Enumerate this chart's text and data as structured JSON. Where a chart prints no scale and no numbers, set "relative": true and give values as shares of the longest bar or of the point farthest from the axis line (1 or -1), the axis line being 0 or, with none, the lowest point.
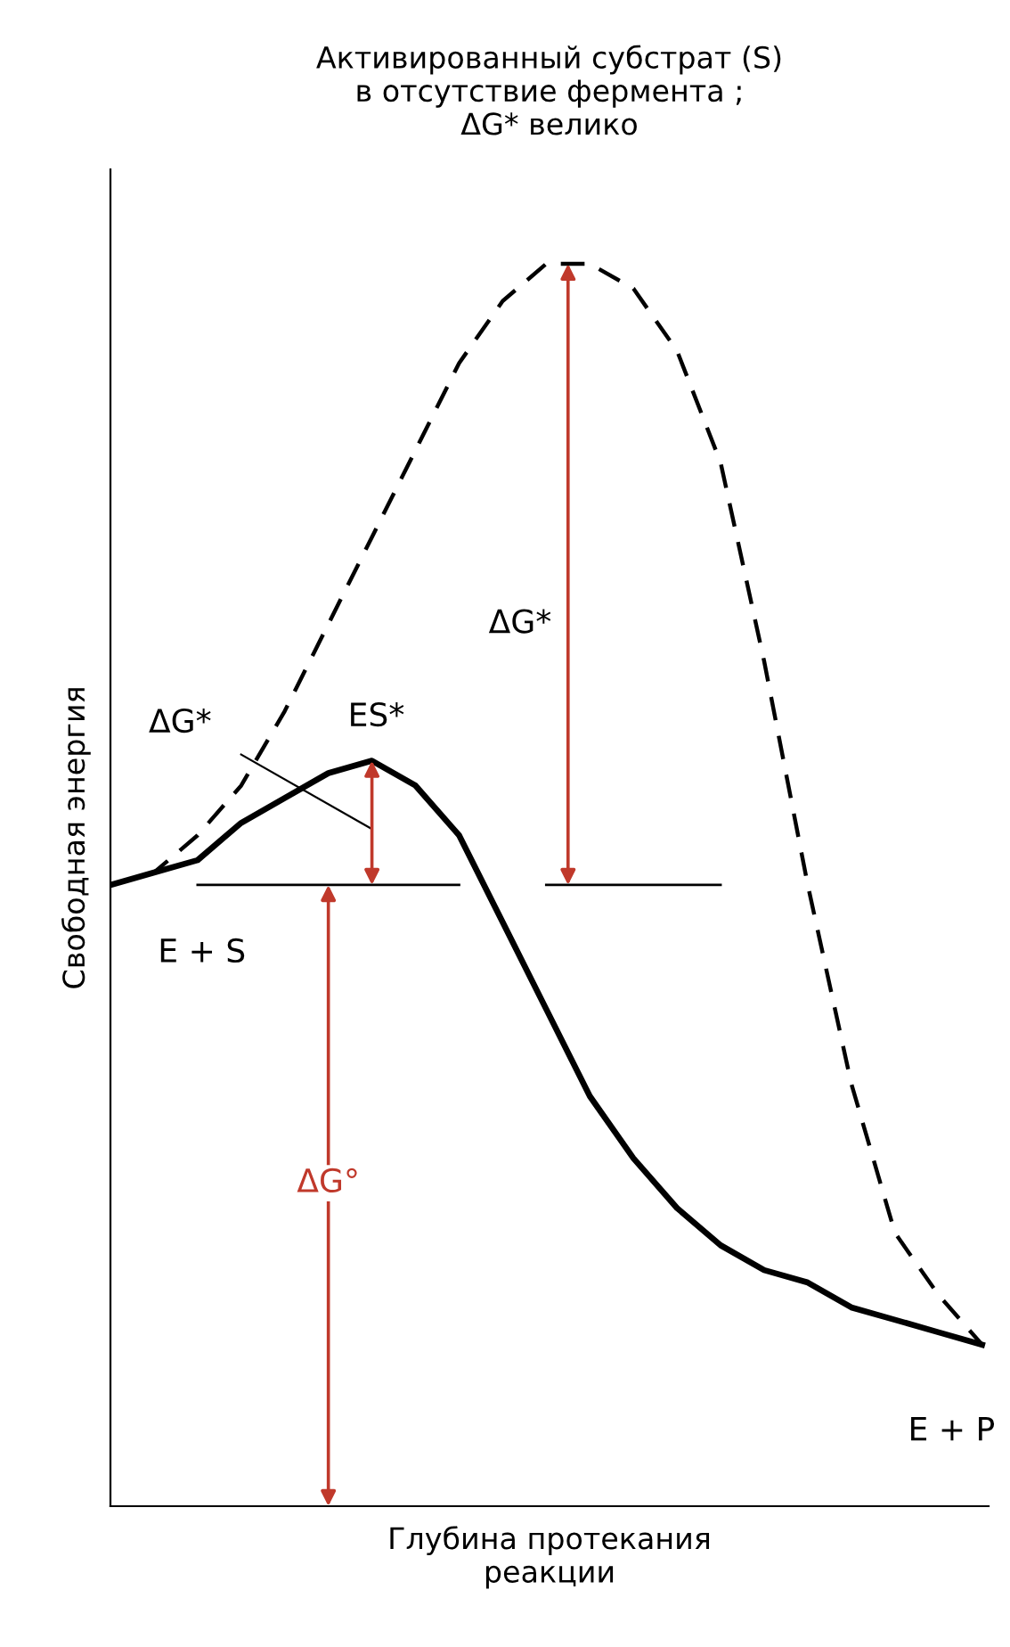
{
  "chart_data": {
    "type": "line",
    "relative": true,
    "title": "Активированный субстрат (S)\nв отсутствие фермента ;\nΔG* велико",
    "xlabel": "Глубина протекания\nреакции",
    "ylabel": "Свободная энергия",
    "categories": [
      null,
      null,
      null,
      null,
      null,
      null,
      null,
      null,
      null,
      null,
      null,
      null,
      null,
      null,
      null,
      null,
      null,
      null,
      null,
      null,
      null
    ],
    "series": [
      {
        "color": "#000000",
        "line_style": "dashed",
        "values": [
          0.5,
          0.51,
          0.54,
          0.58,
          0.64,
          0.71,
          0.78,
          0.85,
          0.92,
          0.97,
          1.0,
          1.0,
          0.98,
          0.93,
          0.84,
          0.68,
          0.5,
          0.34,
          0.22,
          0.17,
          0.13
        ]
      },
      {
        "color": "#000000",
        "line_style": "solid",
        "values": [
          0.5,
          0.51,
          0.52,
          0.55,
          0.57,
          0.59,
          0.6,
          0.58,
          0.54,
          0.47,
          0.4,
          0.33,
          0.28,
          0.24,
          0.21,
          0.19,
          0.18,
          0.16,
          0.15,
          0.14,
          0.13
        ]
      },
      {
        "color": "#000000",
        "line_style": "solid",
        "values": [
          null,
          null,
          0.5,
          0.5,
          0.5,
          0.5,
          0.5,
          0.5,
          0.5,
          null,
          0.5,
          0.5,
          0.5,
          0.5,
          0.5,
          null,
          null,
          null,
          null,
          null,
          null
        ]
      }
    ],
    "annotations": [
      "ΔG*",
      "ES*",
      "E + S",
      "ΔG°",
      "ΔG*",
      "E + P"
    ],
    "marker": "none"
  }
}
